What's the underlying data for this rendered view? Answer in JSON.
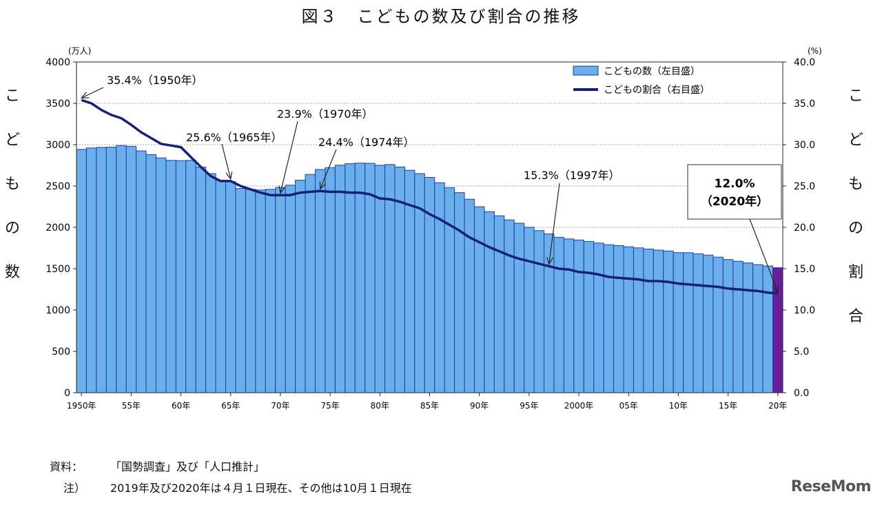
{
  "title": "図３　こどもの数及び割合の推移",
  "left_axis_vertical_label": "こどもの数",
  "right_axis_vertical_label": "こどもの割合",
  "left_unit": "(万人)",
  "right_unit": "(%)",
  "source_label": "資料：",
  "source_text": "「国勢調査」及び「人口推計」",
  "note_label": "注）",
  "note_text": "2019年及び2020年は４月１日現在、その他は10月１日現在",
  "brand": "ReseMom",
  "colors": {
    "bar_fill": "#6aaeea",
    "bar_stroke": "#1c3fa8",
    "bar_highlight_2020": "#6a1f9a",
    "line": "#16207a",
    "background": "#ffffff"
  },
  "chart_data": {
    "type": "bar",
    "title": "",
    "xlabel": "",
    "ylabel": "(万人)",
    "y2label": "(%)",
    "ylim": [
      0,
      4000
    ],
    "y2lim": [
      0,
      40
    ],
    "y_ticks": [
      "0",
      "500",
      "1000",
      "1500",
      "2000",
      "2500",
      "3000",
      "3500",
      "4000"
    ],
    "y2_ticks": [
      "0.0",
      "5.0",
      "10.0",
      "15.0",
      "20.0",
      "25.0",
      "30.0",
      "35.0",
      "40.0"
    ],
    "x_tick_labels": [
      {
        "year": 1950,
        "label": "1950年"
      },
      {
        "year": 1955,
        "label": "55年"
      },
      {
        "year": 1960,
        "label": "60年"
      },
      {
        "year": 1965,
        "label": "65年"
      },
      {
        "year": 1970,
        "label": "70年"
      },
      {
        "year": 1975,
        "label": "75年"
      },
      {
        "year": 1980,
        "label": "80年"
      },
      {
        "year": 1985,
        "label": "85年"
      },
      {
        "year": 1990,
        "label": "90年"
      },
      {
        "year": 1995,
        "label": "95年"
      },
      {
        "year": 2000,
        "label": "2000年"
      },
      {
        "year": 2005,
        "label": "05年"
      },
      {
        "year": 2010,
        "label": "10年"
      },
      {
        "year": 2015,
        "label": "15年"
      },
      {
        "year": 2020,
        "label": "20年"
      }
    ],
    "x": [
      1950,
      1951,
      1952,
      1953,
      1954,
      1955,
      1956,
      1957,
      1958,
      1959,
      1960,
      1961,
      1962,
      1963,
      1964,
      1965,
      1966,
      1967,
      1968,
      1969,
      1970,
      1971,
      1972,
      1973,
      1974,
      1975,
      1976,
      1977,
      1978,
      1979,
      1980,
      1981,
      1982,
      1983,
      1984,
      1985,
      1986,
      1987,
      1988,
      1989,
      1990,
      1991,
      1992,
      1993,
      1994,
      1995,
      1996,
      1997,
      1998,
      1999,
      2000,
      2001,
      2002,
      2003,
      2004,
      2005,
      2006,
      2007,
      2008,
      2009,
      2010,
      2011,
      2012,
      2013,
      2014,
      2015,
      2016,
      2017,
      2018,
      2019,
      2020
    ],
    "series": [
      {
        "name": "こどもの数（左目盛）",
        "type": "bar",
        "axis": "left",
        "values": [
          2943,
          2960,
          2967,
          2970,
          2989,
          2980,
          2925,
          2880,
          2840,
          2810,
          2807,
          2810,
          2730,
          2650,
          2570,
          2553,
          2470,
          2460,
          2452,
          2460,
          2482,
          2510,
          2570,
          2640,
          2700,
          2722,
          2752,
          2770,
          2777,
          2775,
          2751,
          2760,
          2730,
          2690,
          2650,
          2604,
          2540,
          2480,
          2420,
          2340,
          2249,
          2190,
          2140,
          2090,
          2050,
          2001,
          1960,
          1920,
          1880,
          1860,
          1847,
          1830,
          1810,
          1790,
          1780,
          1765,
          1752,
          1738,
          1725,
          1714,
          1694,
          1693,
          1680,
          1665,
          1640,
          1611,
          1590,
          1570,
          1550,
          1533,
          1512
        ]
      },
      {
        "name": "こどもの割合（右目盛）",
        "type": "line",
        "axis": "right",
        "values": [
          35.4,
          35.0,
          34.2,
          33.6,
          33.2,
          32.4,
          31.5,
          30.8,
          30.1,
          29.9,
          29.7,
          28.5,
          27.3,
          26.2,
          25.6,
          25.6,
          25.0,
          24.6,
          24.2,
          23.9,
          23.9,
          23.9,
          24.2,
          24.3,
          24.4,
          24.3,
          24.3,
          24.2,
          24.2,
          24.0,
          23.5,
          23.4,
          23.1,
          22.7,
          22.3,
          21.6,
          21.0,
          20.3,
          19.6,
          18.8,
          18.2,
          17.6,
          17.1,
          16.6,
          16.2,
          15.9,
          15.6,
          15.3,
          15.0,
          14.9,
          14.6,
          14.5,
          14.3,
          14.0,
          13.9,
          13.8,
          13.7,
          13.5,
          13.5,
          13.4,
          13.2,
          13.1,
          13.0,
          12.9,
          12.8,
          12.6,
          12.5,
          12.4,
          12.3,
          12.1,
          12.0
        ]
      }
    ],
    "legend": {
      "position": "top-right",
      "entries": [
        "こどもの数（左目盛）",
        "こどもの割合（右目盛）"
      ]
    },
    "annotations": [
      {
        "year": 1950,
        "value": 35.4,
        "text": "35.4%（1950年）"
      },
      {
        "year": 1965,
        "value": 25.6,
        "text": "25.6%（1965年）"
      },
      {
        "year": 1970,
        "value": 23.9,
        "text": "23.9%（1970年）"
      },
      {
        "year": 1974,
        "value": 24.4,
        "text": "24.4%（1974年）"
      },
      {
        "year": 1997,
        "value": 15.3,
        "text": "15.3%（1997年）"
      },
      {
        "year": 2020,
        "value": 12.0,
        "text_line1": "12.0%",
        "text_line2": "（2020年）",
        "boxed": true
      }
    ],
    "grid": "horizontal dotted"
  }
}
